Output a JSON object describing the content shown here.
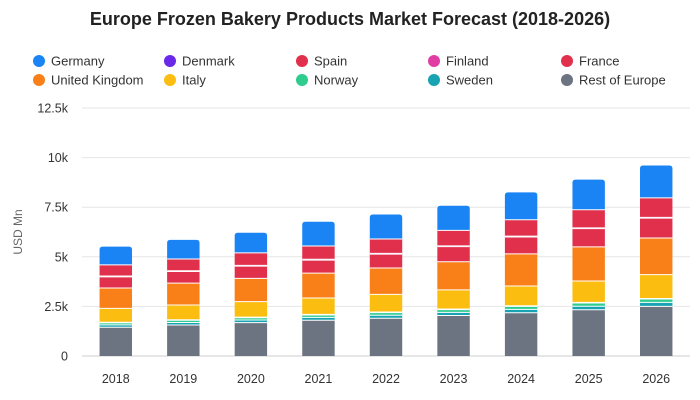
{
  "chart_data": {
    "type": "bar",
    "stacked": true,
    "title": "Europe Frozen Bakery Products Market Forecast (2018-2026)",
    "xlabel": "",
    "ylabel": "USD Mn",
    "ylim": [
      0,
      12500
    ],
    "yticks": [
      0,
      2500,
      5000,
      7500,
      10000,
      12500
    ],
    "ytick_labels": [
      "0",
      "2.5k",
      "5k",
      "7.5k",
      "10k",
      "12.5k"
    ],
    "grid": true,
    "legend_position": "top",
    "categories": [
      "2018",
      "2019",
      "2020",
      "2021",
      "2022",
      "2023",
      "2024",
      "2025",
      "2026"
    ],
    "series": [
      {
        "name": "Rest of Europe",
        "color": "#6b7480",
        "values": [
          1450,
          1560,
          1680,
          1800,
          1900,
          2040,
          2180,
          2330,
          2500
        ]
      },
      {
        "name": "Sweden",
        "color": "#17a3b1",
        "values": [
          120,
          130,
          135,
          145,
          155,
          160,
          170,
          180,
          200
        ]
      },
      {
        "name": "Norway",
        "color": "#2ecc8e",
        "values": [
          100,
          110,
          115,
          120,
          130,
          140,
          150,
          160,
          170
        ]
      },
      {
        "name": "Finland",
        "color": "#e03ea3",
        "values": [
          30,
          30,
          30,
          30,
          30,
          30,
          30,
          30,
          30
        ]
      },
      {
        "name": "Italy",
        "color": "#fbbd0f",
        "values": [
          700,
          740,
          780,
          830,
          890,
          960,
          1000,
          1080,
          1200
        ]
      },
      {
        "name": "United Kingdom",
        "color": "#f97f18",
        "values": [
          1030,
          1100,
          1170,
          1250,
          1330,
          1420,
          1620,
          1720,
          1850
        ]
      },
      {
        "name": "Spain",
        "color": "#e0304b",
        "values": [
          560,
          590,
          620,
          660,
          700,
          760,
          850,
          920,
          1000
        ]
      },
      {
        "name": "Denmark",
        "color": "#6a28e8",
        "values": [
          40,
          40,
          40,
          40,
          40,
          40,
          40,
          40,
          40
        ]
      },
      {
        "name": "France",
        "color": "#e0304b",
        "values": [
          560,
          590,
          630,
          670,
          720,
          780,
          830,
          910,
          980
        ]
      },
      {
        "name": "Germany",
        "color": "#1a84f5",
        "values": [
          920,
          960,
          1010,
          1220,
          1240,
          1240,
          1380,
          1520,
          1630
        ]
      }
    ],
    "legend": [
      {
        "name": "Germany",
        "color": "#1a84f5"
      },
      {
        "name": "Denmark",
        "color": "#6a28e8"
      },
      {
        "name": "Spain",
        "color": "#e0304b"
      },
      {
        "name": "Finland",
        "color": "#e03ea3"
      },
      {
        "name": "France",
        "color": "#e0304b"
      },
      {
        "name": "United Kingdom",
        "color": "#f97f18"
      },
      {
        "name": "Italy",
        "color": "#fbbd0f"
      },
      {
        "name": "Norway",
        "color": "#2ecc8e"
      },
      {
        "name": "Sweden",
        "color": "#17a3b1"
      },
      {
        "name": "Rest of Europe",
        "color": "#6b7480"
      }
    ]
  }
}
